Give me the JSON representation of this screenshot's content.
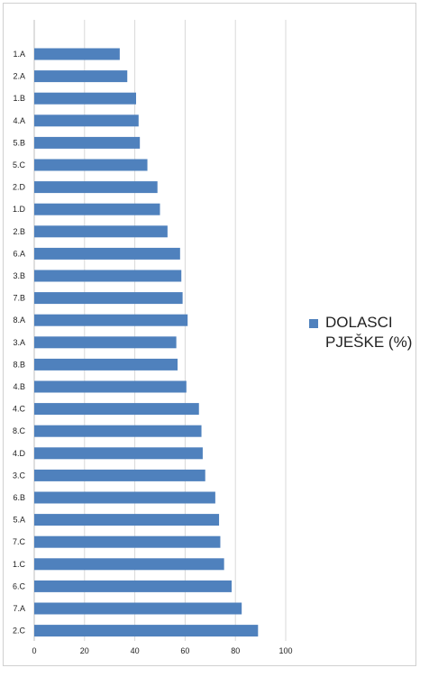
{
  "chart_data": {
    "type": "bar",
    "orientation": "horizontal",
    "categories": [
      "1.A",
      "2.A",
      "1.B",
      "4.A",
      "5.B",
      "5.C",
      "2.D",
      "1.D",
      "2.B",
      "6.A",
      "3.B",
      "7.B",
      "8.A",
      "3.A",
      "8.B",
      "4.B",
      "4.C",
      "8.C",
      "4.D",
      "3.C",
      "6.B",
      "5.A",
      "7.C",
      "1.C",
      "6.C",
      "7.A",
      "2.C"
    ],
    "series": [
      {
        "name": "DOLASCI PJEŠKE (%)",
        "color": "#4f81bd",
        "values": [
          34,
          37,
          40.5,
          41.5,
          42,
          45,
          49,
          50,
          53,
          58,
          58.5,
          59,
          61,
          56.5,
          57,
          60.5,
          65.5,
          66.5,
          67,
          68,
          72,
          73.5,
          74,
          75.5,
          78.5,
          82.5,
          89
        ]
      }
    ],
    "xlim": [
      0,
      100
    ],
    "x_ticks": [
      "0",
      "20",
      "40",
      "60",
      "80",
      "100"
    ],
    "grid": "vertical",
    "legend_position": "right",
    "title": "",
    "xlabel": "",
    "ylabel": ""
  }
}
